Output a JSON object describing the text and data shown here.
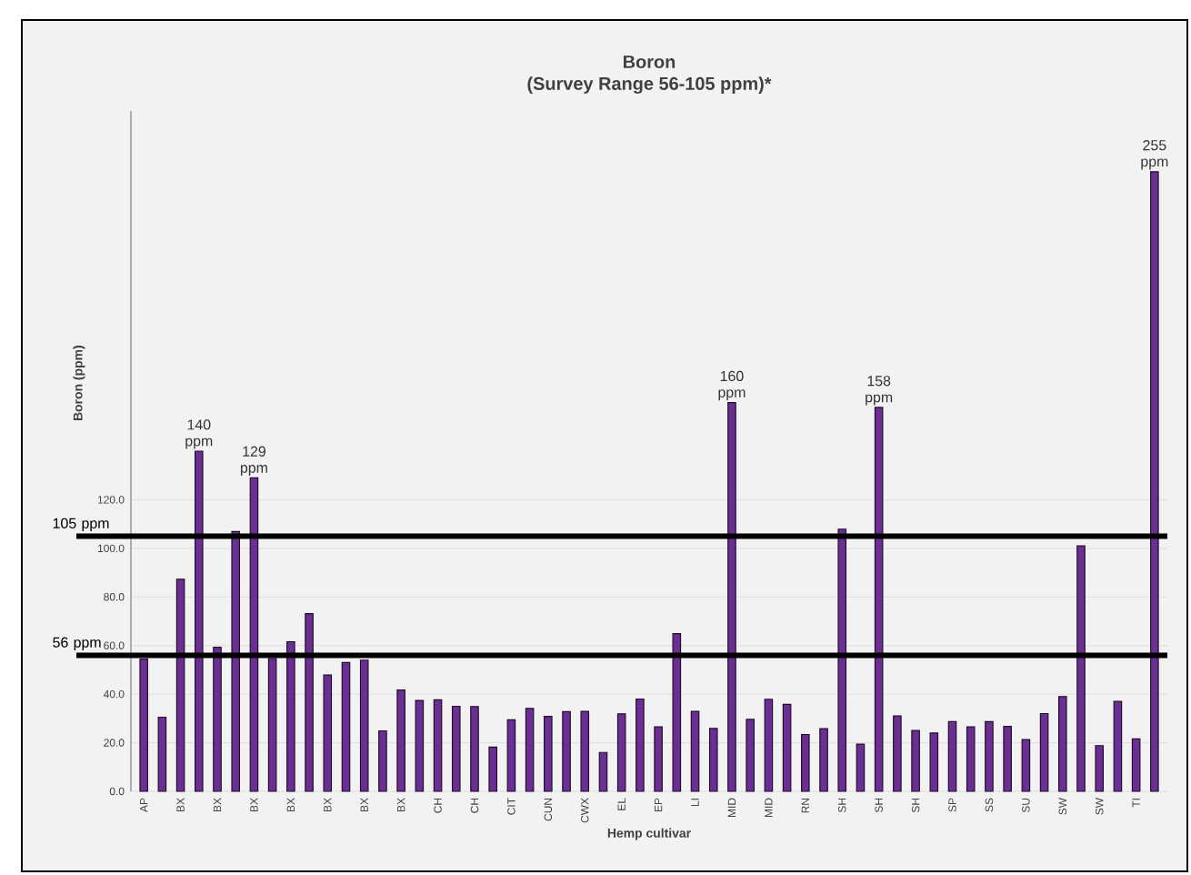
{
  "chart_data": {
    "type": "bar",
    "title": "Boron",
    "subtitle": "(Survey Range 56-105 ppm)*",
    "xlabel": "Hemp cultivar",
    "ylabel": "Boron  (ppm)",
    "categories": [
      "AP",
      null,
      "BX",
      null,
      "BX",
      null,
      "BX",
      null,
      "BX",
      null,
      "BX",
      null,
      "BX",
      null,
      "BX",
      null,
      "CH",
      null,
      "CH",
      null,
      "CIT",
      null,
      "CUN",
      null,
      "CWX",
      null,
      "EL",
      null,
      "EP",
      null,
      "LI",
      null,
      "MID",
      null,
      "MID",
      null,
      "RN",
      null,
      "SH",
      null,
      "SH",
      null,
      "SH",
      null,
      "SP",
      null,
      "SS",
      null,
      "SU",
      null,
      "SW",
      null,
      "SW",
      null,
      "TI",
      null
    ],
    "values": [
      54.4,
      30.5,
      87.3,
      140,
      59.3,
      106.9,
      129,
      54.6,
      61.5,
      73.1,
      47.9,
      53.0,
      54.0,
      24.9,
      41.7,
      37.4,
      37.7,
      35.0,
      34.9,
      18.2,
      29.4,
      34.1,
      30.8,
      32.8,
      32.9,
      16.0,
      31.9,
      38.0,
      26.5,
      64.9,
      32.9,
      25.9,
      160,
      29.6,
      37.9,
      35.8,
      23.4,
      25.8,
      107.9,
      19.4,
      158,
      31.0,
      25.0,
      24.0,
      28.7,
      26.5,
      28.7,
      26.7,
      21.3,
      32.0,
      39.0,
      101.0,
      18.8,
      37.0,
      21.6,
      255
    ],
    "value_labels": [
      null,
      null,
      null,
      "140 ppm",
      null,
      null,
      "129 ppm",
      null,
      null,
      null,
      null,
      null,
      null,
      null,
      null,
      null,
      null,
      null,
      null,
      null,
      null,
      null,
      null,
      null,
      null,
      null,
      null,
      null,
      null,
      null,
      null,
      null,
      "160 ppm",
      null,
      null,
      null,
      null,
      null,
      null,
      null,
      "158 ppm",
      null,
      null,
      null,
      null,
      null,
      null,
      null,
      null,
      null,
      null,
      null,
      null,
      null,
      null,
      "255 ppm"
    ],
    "color": "#6b2f94",
    "ylim": [
      0,
      280
    ],
    "yticks": [
      {
        "value": 0,
        "label": "0.0"
      },
      {
        "value": 20,
        "label": "20.0"
      },
      {
        "value": 40,
        "label": "40.0"
      },
      {
        "value": 60,
        "label": "60.0"
      },
      {
        "value": 80,
        "label": "80.0"
      },
      {
        "value": 100,
        "label": "100.0"
      },
      {
        "value": 120,
        "label": "120.0"
      }
    ],
    "grid": "y",
    "ref_lines": [
      {
        "axis": "y",
        "value": 105,
        "label": "105 ppm",
        "color": "#000000"
      },
      {
        "axis": "y",
        "value": 56,
        "label": "56 ppm",
        "color": "#000000"
      }
    ]
  }
}
